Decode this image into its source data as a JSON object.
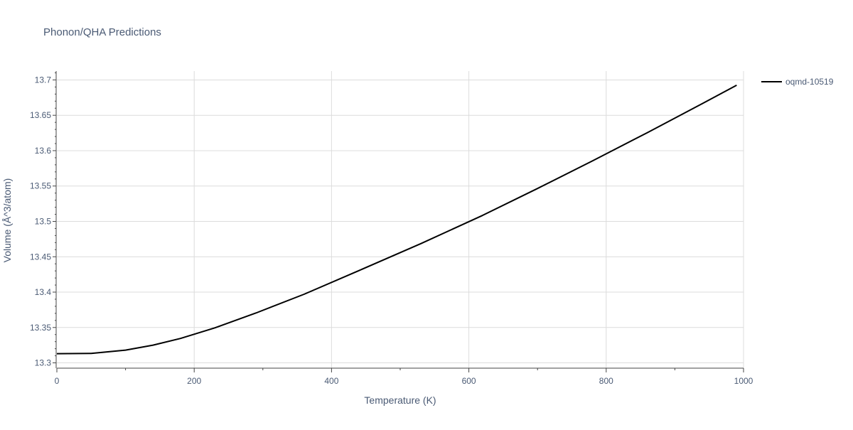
{
  "chart_data": {
    "type": "line",
    "title": "Phonon/QHA Predictions",
    "xlabel": "Temperature (K)",
    "ylabel": "Volume (Å^3/atom)",
    "xlim": [
      0,
      1000
    ],
    "ylim": [
      13.2925,
      13.7125
    ],
    "x_ticks": [
      0,
      200,
      400,
      600,
      800,
      1000
    ],
    "y_ticks": [
      13.3,
      13.35,
      13.4,
      13.45,
      13.5,
      13.55,
      13.6,
      13.65,
      13.7
    ],
    "x_tick_labels": [
      "0",
      "200",
      "400",
      "600",
      "800",
      "1000"
    ],
    "y_tick_labels": [
      "13.3",
      "13.35",
      "13.4",
      "13.45",
      "13.5",
      "13.55",
      "13.6",
      "13.65",
      "13.7"
    ],
    "grid": true,
    "legend_position": "top-right",
    "series": [
      {
        "name": "oqmd-10519",
        "color": "#000000",
        "x": [
          0,
          50,
          100,
          140,
          180,
          230,
          290,
          360,
          440,
          530,
          620,
          700,
          780,
          860,
          940,
          990
        ],
        "y": [
          13.313,
          13.3133,
          13.318,
          13.325,
          13.3345,
          13.3495,
          13.3705,
          13.397,
          13.4305,
          13.4685,
          13.5085,
          13.5465,
          13.5855,
          13.6255,
          13.6665,
          13.6925
        ]
      }
    ]
  }
}
